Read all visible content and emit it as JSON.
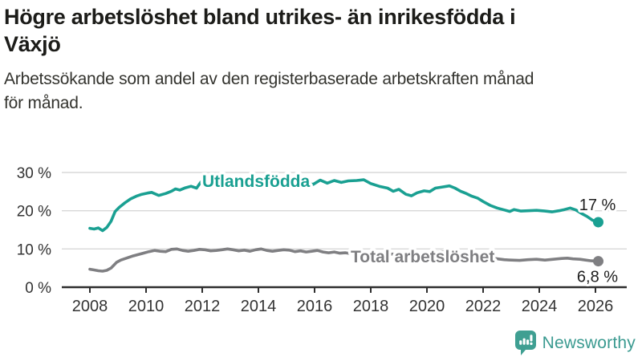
{
  "header": {
    "title_lines": [
      "Högre arbetslöshet bland utrikes- än inrikesfödda i",
      "Växjö"
    ],
    "subtitle_lines": [
      "Arbetssökande som andel av den registerbaserade arbetskraften månad",
      "för månad."
    ]
  },
  "logo": {
    "text": "Newsworthy",
    "icon": "newsworthy-speech-bubble-bar-chart",
    "color": "#3f9f92"
  },
  "colors": {
    "accent_teal": "#1aa092",
    "series_gray": "#7f7f82",
    "grid": "#d8d8d8",
    "axis": "#2e2e2e",
    "tick_text": "#333333",
    "annotation_text": "#1d1d1d"
  },
  "chart_data": {
    "type": "line",
    "title": "Högre arbetslöshet bland utrikes- än inrikesfödda i Växjö",
    "subtitle": "Arbetssökande som andel av den registerbaserade arbetskraften månad för månad.",
    "grid": true,
    "legend_position": "inline-labels",
    "x_axis": {
      "min": 2007.7,
      "max": 2026.6,
      "tick_labels": [
        "2008",
        "2010",
        "2012",
        "2014",
        "2016",
        "2018",
        "2020",
        "2022",
        "2024",
        "2026"
      ],
      "tick_years": [
        2008,
        2010,
        2012,
        2014,
        2016,
        2018,
        2020,
        2022,
        2024,
        2026
      ]
    },
    "y_axis": {
      "min": 0,
      "max": 30,
      "unit": "%",
      "ticks": [
        {
          "value": 30,
          "label": "30 %"
        },
        {
          "value": 20,
          "label": "20 %"
        },
        {
          "value": 10,
          "label": "10 %"
        },
        {
          "value": 0,
          "label": "0 %"
        }
      ]
    },
    "series": [
      {
        "name": "Utlandsfödda",
        "color": "#1aa092",
        "end_label": "17 %",
        "end_value": 17.0,
        "points": [
          [
            2008.0,
            15.4
          ],
          [
            2008.15,
            15.2
          ],
          [
            2008.3,
            15.5
          ],
          [
            2008.45,
            14.8
          ],
          [
            2008.6,
            15.6
          ],
          [
            2008.75,
            17.2
          ],
          [
            2008.9,
            19.8
          ],
          [
            2009.05,
            20.9
          ],
          [
            2009.25,
            22.1
          ],
          [
            2009.45,
            23.1
          ],
          [
            2009.65,
            23.8
          ],
          [
            2009.85,
            24.3
          ],
          [
            2010.05,
            24.6
          ],
          [
            2010.2,
            24.8
          ],
          [
            2010.45,
            24.0
          ],
          [
            2010.7,
            24.5
          ],
          [
            2010.9,
            25.1
          ],
          [
            2011.05,
            25.7
          ],
          [
            2011.2,
            25.4
          ],
          [
            2011.4,
            26.0
          ],
          [
            2011.6,
            26.4
          ],
          [
            2011.8,
            25.9
          ],
          [
            2011.95,
            27.5
          ],
          [
            2012.1,
            26.9
          ],
          [
            2012.3,
            27.4
          ],
          [
            2012.6,
            27.9
          ],
          [
            2012.9,
            27.6
          ],
          [
            2013.2,
            28.0
          ],
          [
            2013.5,
            27.7
          ],
          [
            2013.8,
            28.1
          ],
          [
            2014.1,
            27.8
          ],
          [
            2014.4,
            28.0
          ],
          [
            2014.7,
            27.7
          ],
          [
            2015.0,
            27.9
          ],
          [
            2015.3,
            27.6
          ],
          [
            2015.6,
            27.3
          ],
          [
            2015.95,
            26.9
          ],
          [
            2016.2,
            28.0
          ],
          [
            2016.45,
            27.2
          ],
          [
            2016.7,
            27.9
          ],
          [
            2016.95,
            27.4
          ],
          [
            2017.2,
            27.8
          ],
          [
            2017.5,
            27.9
          ],
          [
            2017.75,
            28.1
          ],
          [
            2018.0,
            27.1
          ],
          [
            2018.3,
            26.4
          ],
          [
            2018.6,
            25.9
          ],
          [
            2018.8,
            25.1
          ],
          [
            2019.0,
            25.6
          ],
          [
            2019.25,
            24.3
          ],
          [
            2019.45,
            23.9
          ],
          [
            2019.65,
            24.7
          ],
          [
            2019.9,
            25.2
          ],
          [
            2020.1,
            25.0
          ],
          [
            2020.3,
            25.9
          ],
          [
            2020.55,
            26.2
          ],
          [
            2020.8,
            26.5
          ],
          [
            2021.0,
            25.9
          ],
          [
            2021.2,
            25.1
          ],
          [
            2021.4,
            24.5
          ],
          [
            2021.6,
            23.8
          ],
          [
            2021.8,
            23.3
          ],
          [
            2022.0,
            22.4
          ],
          [
            2022.25,
            21.4
          ],
          [
            2022.5,
            20.7
          ],
          [
            2022.75,
            20.2
          ],
          [
            2022.95,
            19.8
          ],
          [
            2023.1,
            20.3
          ],
          [
            2023.35,
            19.9
          ],
          [
            2023.6,
            20.0
          ],
          [
            2023.9,
            20.1
          ],
          [
            2024.2,
            19.9
          ],
          [
            2024.45,
            19.7
          ],
          [
            2024.7,
            20.0
          ],
          [
            2024.9,
            20.3
          ],
          [
            2025.1,
            20.7
          ],
          [
            2025.3,
            20.2
          ],
          [
            2025.5,
            19.3
          ],
          [
            2025.7,
            18.5
          ],
          [
            2025.9,
            17.5
          ],
          [
            2026.1,
            17.0
          ]
        ]
      },
      {
        "name": "Total arbetslöshet",
        "color": "#7f7f82",
        "end_label": "6,8 %",
        "end_value": 6.8,
        "points": [
          [
            2008.0,
            4.7
          ],
          [
            2008.15,
            4.5
          ],
          [
            2008.3,
            4.3
          ],
          [
            2008.45,
            4.2
          ],
          [
            2008.6,
            4.4
          ],
          [
            2008.75,
            5.0
          ],
          [
            2008.95,
            6.5
          ],
          [
            2009.1,
            7.1
          ],
          [
            2009.3,
            7.6
          ],
          [
            2009.5,
            8.1
          ],
          [
            2009.7,
            8.5
          ],
          [
            2009.9,
            8.9
          ],
          [
            2010.1,
            9.3
          ],
          [
            2010.3,
            9.6
          ],
          [
            2010.5,
            9.4
          ],
          [
            2010.7,
            9.3
          ],
          [
            2010.9,
            9.9
          ],
          [
            2011.1,
            10.0
          ],
          [
            2011.3,
            9.6
          ],
          [
            2011.5,
            9.4
          ],
          [
            2011.7,
            9.6
          ],
          [
            2011.9,
            9.9
          ],
          [
            2012.1,
            9.8
          ],
          [
            2012.3,
            9.5
          ],
          [
            2012.5,
            9.6
          ],
          [
            2012.7,
            9.8
          ],
          [
            2012.9,
            10.0
          ],
          [
            2013.1,
            9.8
          ],
          [
            2013.3,
            9.5
          ],
          [
            2013.5,
            9.7
          ],
          [
            2013.7,
            9.4
          ],
          [
            2013.9,
            9.8
          ],
          [
            2014.1,
            10.0
          ],
          [
            2014.3,
            9.6
          ],
          [
            2014.5,
            9.4
          ],
          [
            2014.7,
            9.6
          ],
          [
            2014.9,
            9.8
          ],
          [
            2015.1,
            9.7
          ],
          [
            2015.3,
            9.3
          ],
          [
            2015.5,
            9.5
          ],
          [
            2015.7,
            9.2
          ],
          [
            2015.9,
            9.4
          ],
          [
            2016.1,
            9.6
          ],
          [
            2016.3,
            9.2
          ],
          [
            2016.5,
            9.0
          ],
          [
            2016.7,
            9.2
          ],
          [
            2016.9,
            8.9
          ],
          [
            2017.1,
            9.0
          ],
          [
            2017.3,
            8.8
          ],
          [
            2017.7,
            8.7
          ],
          [
            2018.0,
            8.9
          ],
          [
            2018.5,
            8.6
          ],
          [
            2019.0,
            8.7
          ],
          [
            2019.5,
            8.3
          ],
          [
            2020.0,
            8.8
          ],
          [
            2020.5,
            9.3
          ],
          [
            2021.0,
            9.1
          ],
          [
            2021.5,
            8.5
          ],
          [
            2022.0,
            7.9
          ],
          [
            2022.4,
            7.5
          ],
          [
            2022.75,
            7.2
          ],
          [
            2023.0,
            7.1
          ],
          [
            2023.3,
            7.0
          ],
          [
            2023.6,
            7.2
          ],
          [
            2023.9,
            7.3
          ],
          [
            2024.2,
            7.1
          ],
          [
            2024.5,
            7.3
          ],
          [
            2024.8,
            7.5
          ],
          [
            2025.0,
            7.6
          ],
          [
            2025.2,
            7.4
          ],
          [
            2025.45,
            7.3
          ],
          [
            2025.65,
            7.1
          ],
          [
            2025.85,
            6.9
          ],
          [
            2026.1,
            6.8
          ]
        ]
      }
    ]
  }
}
